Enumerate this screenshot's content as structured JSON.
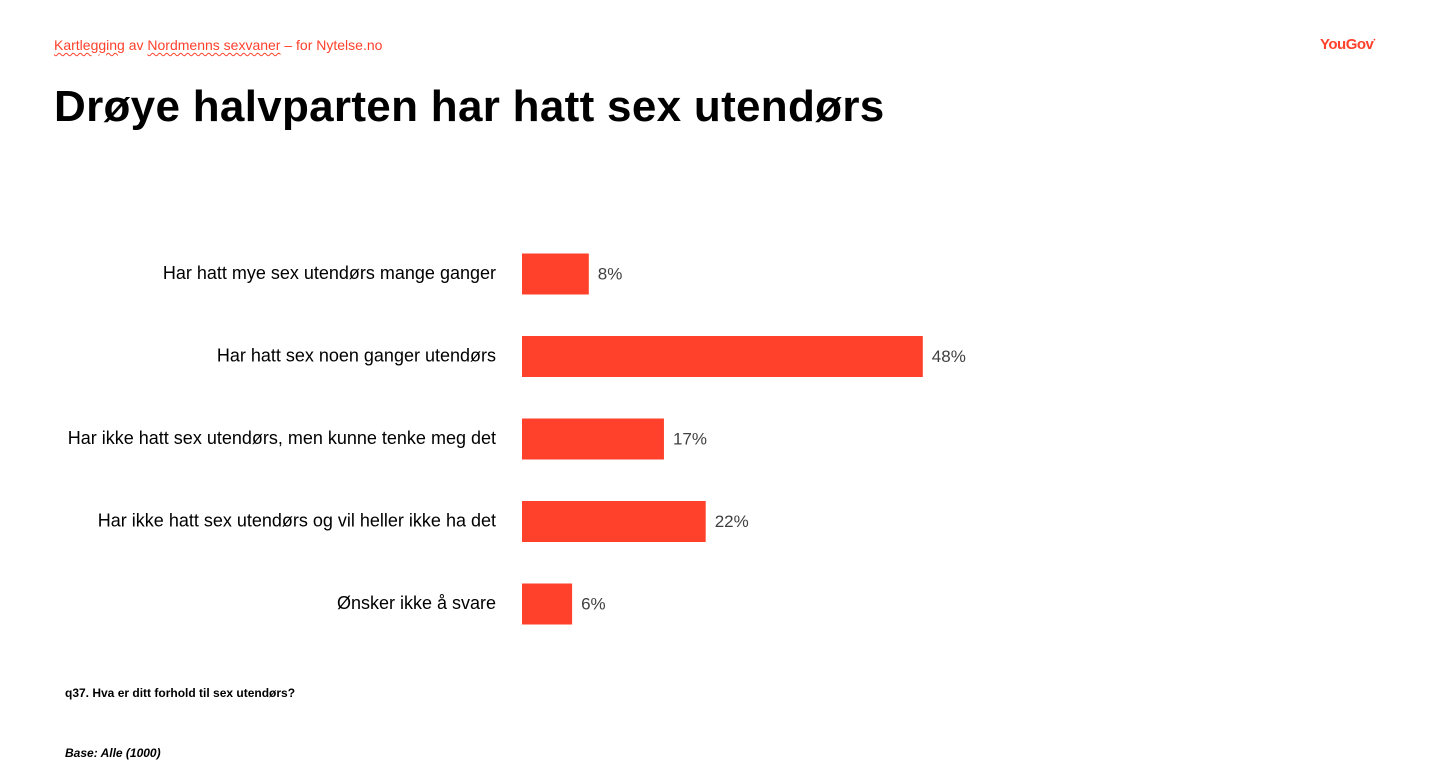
{
  "header": {
    "subtitle_parts": [
      "Kartlegging",
      " av ",
      "Nordmenns sexvaner",
      " – for Nytelse.no"
    ],
    "logo_text": "YouGov",
    "logo_mark": "•"
  },
  "title": "Drøye halvparten har hatt sex utendørs",
  "colors": {
    "accent": "#ff412c",
    "bar": "#ff412c",
    "text": "#000000",
    "value_label": "#404040"
  },
  "chart_data": {
    "type": "bar",
    "orientation": "horizontal",
    "categories": [
      "Har hatt mye sex utendørs mange ganger",
      "Har hatt sex noen ganger utendørs",
      "Har ikke hatt sex utendørs, men kunne tenke meg det",
      "Har ikke hatt sex utendørs og vil heller ikke ha det",
      "Ønsker ikke å svare"
    ],
    "values": [
      8,
      48,
      17,
      22,
      6
    ],
    "value_labels": [
      "8%",
      "48%",
      "17%",
      "22%",
      "6%"
    ],
    "unit": "%",
    "title": "",
    "xlabel": "",
    "ylabel": "",
    "xlim": [
      0,
      100
    ],
    "grid": false,
    "legend": "none"
  },
  "footer": {
    "question": "q37. Hva er ditt forhold til sex utendørs?",
    "base": "Base: Alle (1000)"
  }
}
